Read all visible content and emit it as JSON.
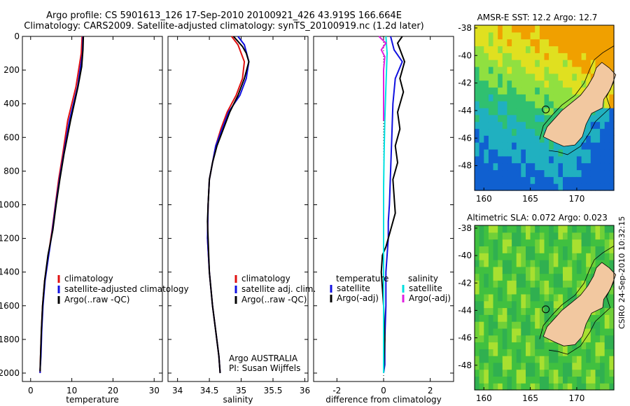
{
  "header": {
    "line1": "Argo profile: CS 5901613_126 17-Sep-2010 20100921_426 43.919S 166.664E",
    "line2": "Climatology: CARS2009. Satellite-adjusted climatology: synTS_20100919.nc (1.2d later)"
  },
  "stamp": "CSIRO 24-Sep-2010 10:32:15",
  "colors": {
    "climatology": "#e01010",
    "satellite": "#1010e0",
    "argo": "#000000",
    "cyan": "#00e0e0",
    "magenta": "#e020e0",
    "land": "#f2c8a0"
  },
  "chart_data": [
    {
      "type": "line",
      "xlabel": "temperature",
      "ylabel": "",
      "xlim": [
        -2,
        32
      ],
      "ylim": [
        0,
        2050
      ],
      "y_reversed": true,
      "xticks": [
        "0",
        "10",
        "20",
        "30"
      ],
      "yticks": [
        "0",
        "200",
        "400",
        "600",
        "800",
        "1000",
        "1200",
        "1400",
        "1600",
        "1800",
        "2000"
      ],
      "legend": [
        "climatology",
        "satellite-adjusted climatology",
        "Argo(..raw -QC)"
      ],
      "legend_labels": [
        "climatology",
        "satellite-adjusted climatology",
        "Argo(..raw -QC)"
      ],
      "series": [
        {
          "name": "climatology",
          "color": "#e01010",
          "x": [
            12.5,
            12.3,
            11.0,
            9.0,
            7.8,
            6.8,
            6.0,
            5.2,
            4.3,
            3.4,
            2.9,
            2.6,
            2.4,
            2.3,
            2.3
          ],
          "y": [
            0,
            100,
            300,
            500,
            700,
            850,
            1000,
            1150,
            1300,
            1450,
            1600,
            1750,
            1900,
            1980,
            2000
          ]
        },
        {
          "name": "satellite-adjusted climatology",
          "color": "#1010e0",
          "x": [
            12.7,
            12.6,
            11.4,
            9.4,
            8.0,
            7.0,
            6.1,
            5.3,
            4.4,
            3.5,
            3.0,
            2.7,
            2.5,
            2.3,
            2.3
          ],
          "y": [
            0,
            100,
            300,
            500,
            700,
            850,
            1000,
            1150,
            1300,
            1450,
            1600,
            1750,
            1900,
            1980,
            2000
          ]
        },
        {
          "name": "Argo(..raw -QC)",
          "color": "#000000",
          "x": [
            12.8,
            12.7,
            12.4,
            11.5,
            9.7,
            8.1,
            7.1,
            6.2,
            5.4,
            4.2,
            3.4,
            2.9,
            2.6,
            2.4,
            2.3
          ],
          "y": [
            0,
            80,
            180,
            300,
            500,
            700,
            850,
            1000,
            1150,
            1300,
            1450,
            1600,
            1750,
            1900,
            1990
          ]
        }
      ]
    },
    {
      "type": "line",
      "xlabel": "salinity",
      "ylabel": "",
      "xlim": [
        33.85,
        36.05
      ],
      "ylim": [
        0,
        2050
      ],
      "y_reversed": true,
      "xticks": [
        "34",
        "34.5",
        "35",
        "35.5",
        "36"
      ],
      "legend": [
        "climatology",
        "satellite adj. clim.",
        "Argo(..raw -QC)"
      ],
      "legend_labels": [
        "climatology",
        "satellite adj. clim.",
        "Argo(..raw -QC)"
      ],
      "annotation_lines": [
        "Argo AUSTRALIA",
        "PI: Susan Wijffels"
      ],
      "series": [
        {
          "name": "climatology",
          "color": "#e01010",
          "x": [
            34.85,
            34.95,
            35.05,
            35.02,
            34.92,
            34.78,
            34.68,
            34.6,
            34.55,
            34.5,
            34.48,
            34.47,
            34.5,
            34.55,
            34.6,
            34.65,
            34.66,
            34.67,
            34.67
          ],
          "y": [
            0,
            50,
            150,
            250,
            350,
            450,
            550,
            650,
            750,
            850,
            1000,
            1200,
            1400,
            1600,
            1750,
            1900,
            1950,
            2000,
            2000
          ]
        },
        {
          "name": "satellite adj. clim.",
          "color": "#1010e0",
          "x": [
            34.95,
            35.05,
            35.12,
            35.08,
            34.98,
            34.8,
            34.7,
            34.6,
            34.55,
            34.5,
            34.48,
            34.47,
            34.5,
            34.55,
            34.6,
            34.65,
            34.66,
            34.67,
            34.67
          ],
          "y": [
            0,
            50,
            150,
            250,
            350,
            450,
            550,
            650,
            750,
            850,
            1000,
            1200,
            1400,
            1600,
            1750,
            1900,
            1950,
            2000,
            2000
          ]
        },
        {
          "name": "Argo(..raw -QC)",
          "color": "#000000",
          "x": [
            34.88,
            34.95,
            35.02,
            35.08,
            35.12,
            35.05,
            34.95,
            34.82,
            34.72,
            34.62,
            34.55,
            34.5,
            34.48,
            34.47,
            34.48,
            34.5,
            34.55,
            34.6,
            34.65,
            34.66,
            34.67
          ],
          "y": [
            0,
            30,
            60,
            100,
            150,
            250,
            350,
            450,
            550,
            650,
            750,
            850,
            1000,
            1100,
            1200,
            1400,
            1600,
            1750,
            1900,
            1950,
            2000
          ]
        }
      ]
    },
    {
      "type": "line",
      "xlabel": "difference from climatology",
      "ylabel": "",
      "xlim": [
        -3,
        3
      ],
      "ylim": [
        0,
        2050
      ],
      "y_reversed": true,
      "xticks": [
        "-2",
        "0",
        "2"
      ],
      "legend_groups": [
        {
          "title": "temperature",
          "entries": [
            "satellite",
            "Argo(-adj)"
          ]
        },
        {
          "title": "salinity",
          "entries": [
            "satellite",
            "Argo(-adj)"
          ]
        }
      ],
      "legend_labels": [
        "temperature",
        "satellite",
        "Argo(-adj)",
        "salinity",
        "satellite",
        "Argo(-adj)"
      ],
      "series": [
        {
          "name": "temperature satellite",
          "color": "#1010e0",
          "x": [
            0.3,
            0.45,
            0.8,
            0.5,
            0.4,
            0.35,
            0.3,
            0.25,
            0.2,
            0.2,
            0.15,
            0.1,
            0.1,
            0.05,
            0.05,
            0.0
          ],
          "y": [
            0,
            80,
            150,
            250,
            400,
            600,
            800,
            1000,
            1100,
            1200,
            1300,
            1400,
            1600,
            1800,
            1950,
            2000
          ]
        },
        {
          "name": "temperature Argo(-adj)",
          "color": "#000000",
          "x": [
            0.8,
            0.6,
            0.9,
            0.7,
            0.85,
            0.6,
            0.7,
            0.5,
            0.6,
            0.4,
            0.45,
            0.5,
            0.3,
            0.1,
            -0.05,
            -0.1,
            0.0,
            0.05,
            0.0
          ],
          "y": [
            0,
            40,
            150,
            250,
            330,
            450,
            550,
            650,
            750,
            850,
            950,
            1050,
            1150,
            1250,
            1300,
            1400,
            1600,
            1800,
            2000
          ]
        },
        {
          "name": "salinity satellite",
          "color": "#00e0e0",
          "x": [
            0.1,
            0.15,
            0.1,
            0.05,
            0.02,
            0.0,
            0.0,
            0.0,
            0.0,
            0.0,
            0.0
          ],
          "y": [
            0,
            100,
            300,
            500,
            700,
            900,
            1100,
            1300,
            1500,
            1700,
            2000
          ]
        },
        {
          "name": "salinity Argo(-adj)",
          "color": "#e020e0",
          "x": [
            -0.2,
            0.1,
            -0.1,
            0.05,
            0.0,
            0.0,
            0.0,
            0.0
          ],
          "y": [
            0,
            40,
            80,
            120,
            200,
            300,
            400,
            500
          ]
        }
      ]
    },
    {
      "type": "heatmap",
      "title": "AMSR-E SST: 12.2 Argo: 12.7",
      "xlim": [
        159,
        174
      ],
      "ylim": [
        -49.8,
        -37.8
      ],
      "xticks": [
        "160",
        "165",
        "170"
      ],
      "yticks": [
        "-38",
        "-40",
        "-42",
        "-44",
        "-46",
        "-48"
      ],
      "profile_location": {
        "lon": 166.664,
        "lat": -43.919
      }
    },
    {
      "type": "heatmap",
      "title": "Altimetric SLA: 0.072 Argo: 0.023",
      "xlim": [
        159,
        174
      ],
      "ylim": [
        -49.8,
        -37.8
      ],
      "xticks": [
        "160",
        "165",
        "170"
      ],
      "yticks": [
        "-38",
        "-40",
        "-42",
        "-44",
        "-46",
        "-48"
      ],
      "profile_location": {
        "lon": 166.664,
        "lat": -43.919
      }
    }
  ]
}
